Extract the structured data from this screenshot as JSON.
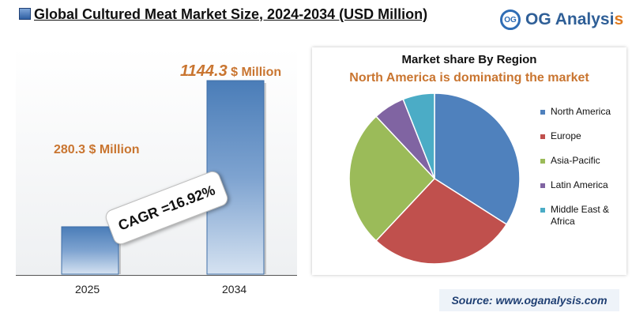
{
  "title": "Global Cultured Meat Market Size, 2024-2034 (USD Million)",
  "logo": {
    "mark": "OG",
    "name_main": "OG Analysi",
    "name_accent": "s"
  },
  "source": "Source: www.oganalysis.com",
  "chart_data": [
    {
      "type": "bar",
      "categories": [
        "2025",
        "2034"
      ],
      "values": [
        280.3,
        1144.3
      ],
      "data_labels": [
        {
          "value": "280.3",
          "unit": " $ Million"
        },
        {
          "value": "1144.3",
          "unit": " $ Million"
        }
      ],
      "annotation": "CAGR =16.92%",
      "colors": {
        "bar_top": "#4a7db8",
        "bar_bottom": "#c8d8ec",
        "label": "#c97530"
      }
    },
    {
      "type": "pie",
      "title": "Market share By Region",
      "subtitle": "North America is dominating the market",
      "labels": [
        "North America",
        "Europe",
        "Asia-Pacific",
        "Latin America",
        "Middle East & Africa"
      ],
      "values": [
        34,
        28,
        26,
        6,
        6
      ],
      "colors": [
        "#4f81bd",
        "#c0504d",
        "#9bbb59",
        "#8064a2",
        "#4bacc6"
      ],
      "legend_position": "right",
      "subtitle_color": "#c97530"
    }
  ]
}
